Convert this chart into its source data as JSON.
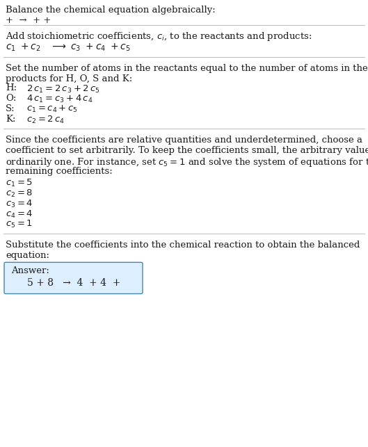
{
  "title": "Balance the chemical equation algebraically:",
  "line1": "+  →  + +",
  "section2_header": "Add stoichiometric coefficients, $c_i$, to the reactants and products:",
  "section2_eq": "$c_1$ +$c_2$   → $c_3$  +$c_4$  +$c_5$",
  "section3_header_1": "Set the number of atoms in the reactants equal to the number of atoms in the",
  "section3_header_2": "products for H, O, S and K:",
  "section3_lines": [
    [
      "H:",
      "$2\\,c_1 = 2\\,c_3 + 2\\,c_5$"
    ],
    [
      "O:",
      "$4\\,c_1 = c_3 + 4\\,c_4$"
    ],
    [
      "S:",
      "$c_1 = c_4 + c_5$"
    ],
    [
      "K:",
      "$c_2 = 2\\,c_4$"
    ]
  ],
  "section4_header": "Since the coefficients are relative quantities and underdetermined, choose a\ncoefficient to set arbitrarily. To keep the coefficients small, the arbitrary value is\nordinarily one. For instance, set $c_5 = 1$ and solve the system of equations for the\nremaining coefficients:",
  "section4_lines": [
    "$c_1 = 5$",
    "$c_2 = 8$",
    "$c_3 = 4$",
    "$c_4 = 4$",
    "$c_5 = 1$"
  ],
  "section5_header_1": "Substitute the coefficients into the chemical reaction to obtain the balanced",
  "section5_header_2": "equation:",
  "answer_label": "Answer:",
  "answer_eq": "   5 + 8   →  4  + 4  +",
  "bg_color": "#ffffff",
  "text_color": "#1a1a1a",
  "line_color": "#bbbbbb",
  "answer_box_fill": "#ddeeff",
  "answer_box_border": "#4488aa",
  "font_size_pt": 9.5,
  "serif_font": "DejaVu Serif",
  "sans_font": "DejaVu Sans"
}
